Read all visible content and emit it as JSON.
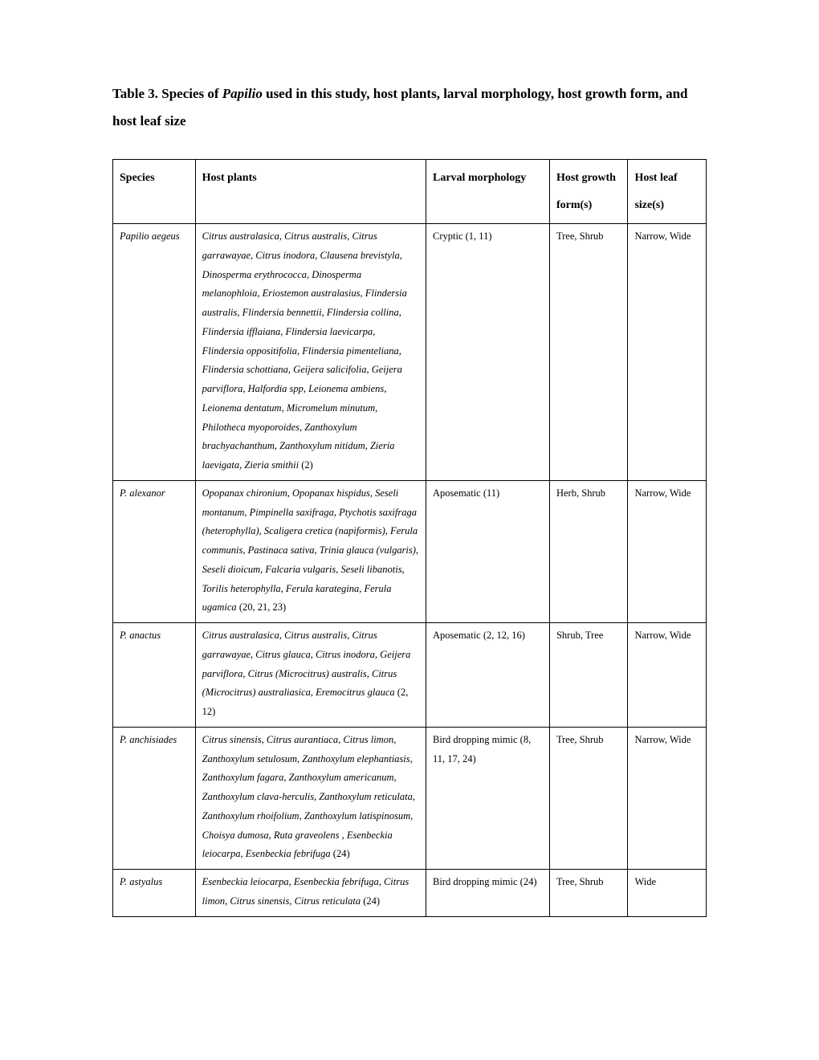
{
  "title_prefix": "Table 3. Species of ",
  "title_italic": "Papilio",
  "title_suffix": " used in this study, host plants, larval morphology, host growth form, and host leaf size",
  "columns": {
    "species": "Species",
    "host_plants": "Host plants",
    "larval": "Larval morphology",
    "growth": "Host growth form(s)",
    "leaf": "Host leaf size(s)"
  },
  "rows": [
    {
      "species": "Papilio aegeus",
      "host_plants": "Citrus australasica, Citrus australis, Citrus garrawayae, Citrus inodora, Clausena brevistyla, Dinosperma erythrococca, Dinosperma melanophloia, Eriostemon australasius, Flindersia australis, Flindersia bennettii, Flindersia collina, Flindersia ifflaiana, Flindersia laevicarpa, Flindersia oppositifolia, Flindersia pimenteliana, Flindersia schottiana, Geijera salicifolia, Geijera parviflora, Halfordia spp, Leionema ambiens, Leionema dentatum, Micromelum minutum, Philotheca myoporoides, Zanthoxylum brachyachanthum, Zanthoxylum nitidum, Zieria laevigata, Zieria smithii",
      "host_ref": " (2)",
      "larval": "Cryptic (1, 11)",
      "growth": "Tree, Shrub",
      "leaf": "Narrow, Wide"
    },
    {
      "species": "P. alexanor",
      "host_plants": "Opopanax chironium, Opopanax hispidus, Seseli montanum, Pimpinella saxifraga, Ptychotis saxifraga (heterophylla), Scaligera cretica (napiformis), Ferula communis, Pastinaca sativa, Trinia glauca (vulgaris), Seseli dioicum, Falcaria vulgaris, Seseli libanotis, Torilis heterophylla, Ferula karategina, Ferula ugamica",
      "host_ref": " (20, 21, 23)",
      "larval": "Aposematic (11)",
      "growth": "Herb, Shrub",
      "leaf": "Narrow, Wide"
    },
    {
      "species": "P. anactus",
      "host_plants": "Citrus australasica, Citrus australis, Citrus garrawayae, Citrus glauca, Citrus inodora, Geijera parviflora, Citrus (Microcitrus) australis, Citrus (Microcitrus) australiasica, Eremocitrus glauca",
      "host_ref": " (2, 12)",
      "larval": "Aposematic (2, 12, 16)",
      "growth": "Shrub, Tree",
      "leaf": "Narrow, Wide"
    },
    {
      "species": "P. anchisiades",
      "host_plants": "Citrus sinensis, Citrus aurantiaca, Citrus limon, Zanthoxylum setulosum, Zanthoxylum elephantiasis, Zanthoxylum fagara, Zanthoxylum americanum, Zanthoxylum clava-herculis, Zanthoxylum reticulata, Zanthoxylum rhoifolium, Zanthoxylum latispinosum, Choisya dumosa, Ruta graveolens , Esenbeckia leiocarpa, Esenbeckia febrifuga",
      "host_ref": " (24)",
      "larval": "Bird dropping mimic (8, 11, 17, 24)",
      "growth": "Tree, Shrub",
      "leaf": "Narrow, Wide"
    },
    {
      "species": "P. astyalus",
      "host_plants": "Esenbeckia leiocarpa, Esenbeckia febrifuga, Citrus limon, Citrus sinensis, Citrus reticulata",
      "host_ref": " (24)",
      "larval": "Bird dropping mimic (24)",
      "growth": "Tree, Shrub",
      "leaf": "Wide"
    }
  ]
}
